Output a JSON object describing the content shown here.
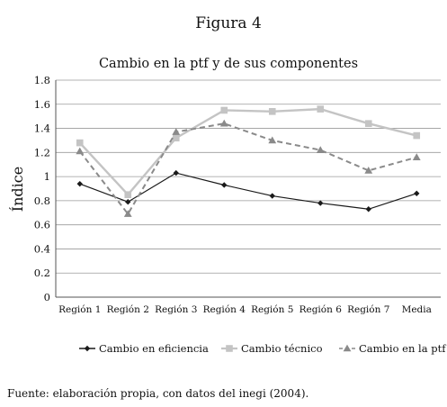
{
  "figure_label": "Figura 4",
  "source_note": "Fuente: elaboración propia, con datos del inegi (2004).",
  "chart_data": {
    "type": "line",
    "title": "Cambio en la ptf y de sus componentes",
    "xlabel": "",
    "ylabel": "Índice",
    "ylim": [
      0,
      1.8
    ],
    "yticks": [
      "0",
      "0.2",
      "0.4",
      "0.6",
      "0.8",
      "1",
      "1.2",
      "1.4",
      "1.6",
      "1.8"
    ],
    "grid": true,
    "legend_position": "bottom",
    "categories": [
      "Región 1",
      "Región 2",
      "Región 3",
      "Región 4",
      "Región 5",
      "Región 6",
      "Región 7",
      "Media"
    ],
    "series": [
      {
        "name": "Cambio en eficiencia",
        "color": "#1a1a1a",
        "marker": "diamond",
        "dash": "solid",
        "values": [
          0.94,
          0.79,
          1.03,
          0.93,
          0.84,
          0.78,
          0.73,
          0.86
        ]
      },
      {
        "name": "Cambio técnico",
        "color": "#c4c4c4",
        "marker": "square",
        "dash": "solid",
        "values": [
          1.28,
          0.85,
          1.32,
          1.55,
          1.54,
          1.56,
          1.44,
          1.34
        ]
      },
      {
        "name": "Cambio en la ptf",
        "color": "#8a8a8a",
        "marker": "triangle",
        "dash": "dashed",
        "values": [
          1.21,
          0.69,
          1.37,
          1.44,
          1.3,
          1.22,
          1.05,
          1.16
        ]
      }
    ]
  }
}
